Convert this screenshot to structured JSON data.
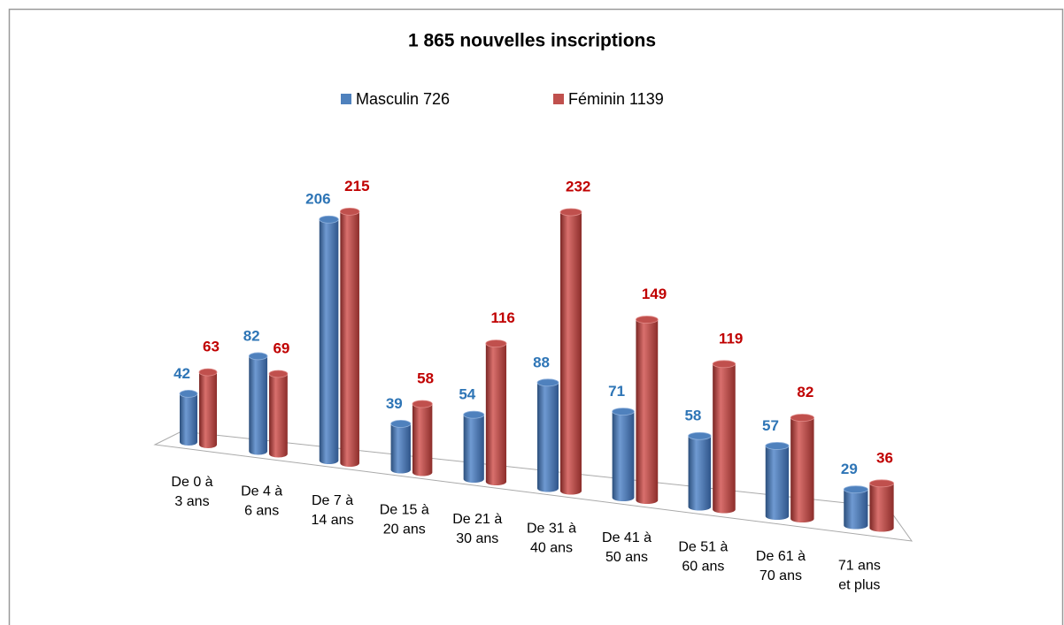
{
  "chart_data": {
    "type": "bar3d",
    "title": "1 865 nouvelles inscriptions",
    "categories": [
      [
        "De 0 à",
        "3 ans"
      ],
      [
        "De 4 à",
        "6 ans"
      ],
      [
        "De 7 à",
        "14 ans"
      ],
      [
        "De 15 à",
        "20 ans"
      ],
      [
        "De 21 à",
        "30 ans"
      ],
      [
        "De 31 à",
        "40 ans"
      ],
      [
        "De 41 à",
        "50 ans"
      ],
      [
        "De 51 à",
        "60 ans"
      ],
      [
        "De 61 à",
        "70 ans"
      ],
      [
        "71 ans",
        "et plus"
      ]
    ],
    "series": [
      {
        "name": "Masculin 726",
        "color": "#4f81bd",
        "label_color": "#2e75b6",
        "values": [
          42,
          82,
          206,
          39,
          54,
          88,
          71,
          58,
          57,
          29
        ]
      },
      {
        "name": "Féminin 1139",
        "color": "#c0504d",
        "label_color": "#c00000",
        "values": [
          63,
          69,
          215,
          58,
          116,
          232,
          149,
          119,
          82,
          36
        ]
      }
    ]
  }
}
